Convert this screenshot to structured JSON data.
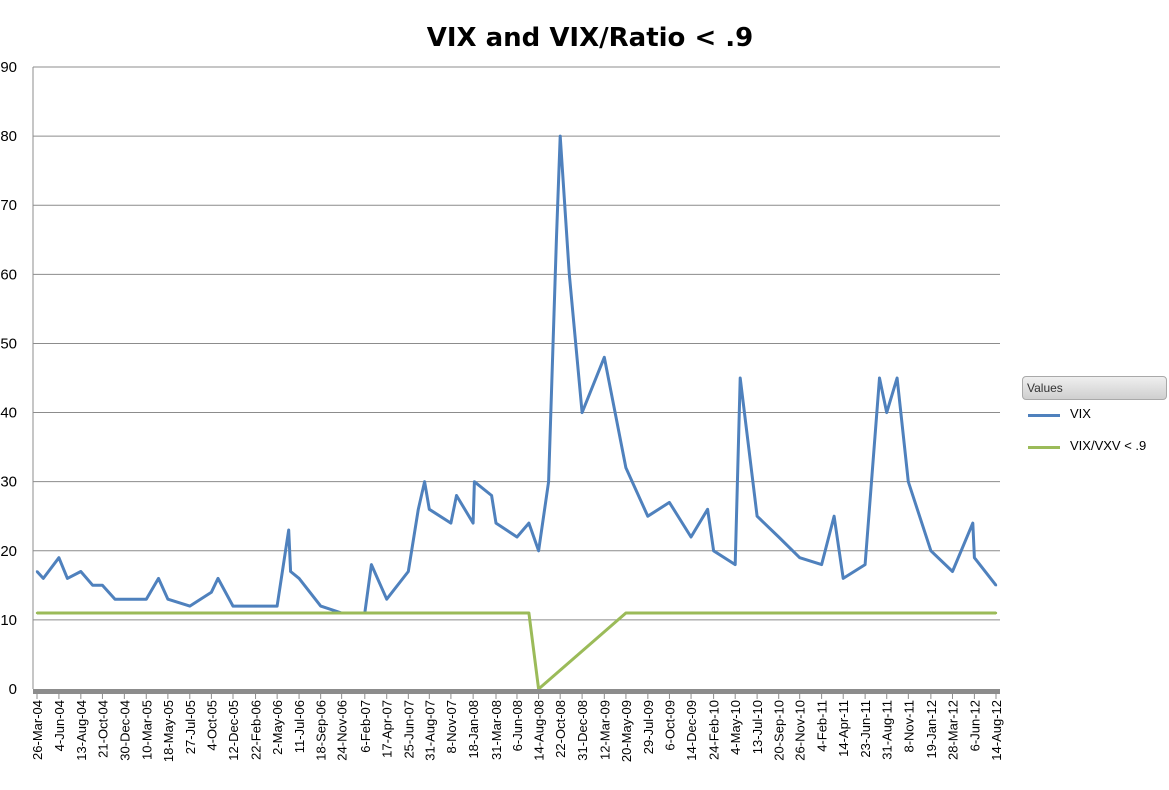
{
  "chart_data": {
    "type": "line",
    "title": "VIX and VIX/Ratio < .9",
    "ylim": [
      0,
      90
    ],
    "yticks": [
      "0",
      "10",
      "20",
      "30",
      "40",
      "50",
      "60",
      "70",
      "80",
      "90"
    ],
    "xticks": [
      "26-Mar-04",
      "4-Jun-04",
      "13-Aug-04",
      "21-Oct-04",
      "30-Dec-04",
      "10-Mar-05",
      "18-May-05",
      "27-Jul-05",
      "4-Oct-05",
      "12-Dec-05",
      "22-Feb-06",
      "2-May-06",
      "11-Jul-06",
      "18-Sep-06",
      "24-Nov-06",
      "6-Feb-07",
      "17-Apr-07",
      "25-Jun-07",
      "31-Aug-07",
      "8-Nov-07",
      "18-Jan-08",
      "31-Mar-08",
      "6-Jun-08",
      "14-Aug-08",
      "22-Oct-08",
      "31-Dec-08",
      "12-Mar-09",
      "20-May-09",
      "29-Jul-09",
      "6-Oct-09",
      "14-Dec-09",
      "24-Feb-10",
      "4-May-10",
      "13-Jul-10",
      "20-Sep-10",
      "26-Nov-10",
      "4-Feb-11",
      "14-Apr-11",
      "23-Jun-11",
      "31-Aug-11",
      "8-Nov-11",
      "19-Jan-12",
      "28-Mar-12",
      "6-Jun-12",
      "14-Aug-12"
    ],
    "grid": true,
    "legend_title": "Values",
    "legend_position": "right",
    "series": [
      {
        "name": "VIX",
        "color": "#4f81bd",
        "x": [
          "26-Mar-04",
          "15-Apr-04",
          "4-Jun-04",
          "1-Jul-04",
          "13-Aug-04",
          "20-Sep-04",
          "21-Oct-04",
          "30-Nov-04",
          "30-Dec-04",
          "10-Mar-05",
          "18-Apr-05",
          "18-May-05",
          "27-Jul-05",
          "4-Oct-05",
          "25-Oct-05",
          "12-Dec-05",
          "22-Feb-06",
          "2-May-06",
          "8-Jun-06",
          "14-Jun-06",
          "11-Jul-06",
          "18-Sep-06",
          "24-Nov-06",
          "6-Feb-07",
          "27-Feb-07",
          "17-Apr-07",
          "25-Jun-07",
          "27-Jul-07",
          "16-Aug-07",
          "31-Aug-07",
          "8-Nov-07",
          "26-Nov-07",
          "18-Jan-08",
          "22-Jan-08",
          "17-Mar-08",
          "31-Mar-08",
          "6-Jun-08",
          "14-Jul-08",
          "14-Aug-08",
          "15-Sep-08",
          "10-Oct-08",
          "22-Oct-08",
          "20-Nov-08",
          "31-Dec-08",
          "12-Mar-09",
          "20-May-09",
          "29-Jul-09",
          "6-Oct-09",
          "14-Dec-09",
          "5-Feb-10",
          "24-Feb-10",
          "4-May-10",
          "20-May-10",
          "13-Jul-10",
          "20-Sep-10",
          "26-Nov-10",
          "4-Feb-11",
          "16-Mar-11",
          "14-Apr-11",
          "23-Jun-11",
          "8-Aug-11",
          "31-Aug-11",
          "3-Oct-11",
          "8-Nov-11",
          "19-Jan-12",
          "28-Mar-12",
          "1-Jun-12",
          "6-Jun-12",
          "14-Aug-12"
        ],
        "values": [
          17,
          16,
          19,
          16,
          17,
          15,
          15,
          13,
          13,
          13,
          16,
          13,
          12,
          14,
          16,
          12,
          12,
          12,
          23,
          17,
          16,
          12,
          11,
          11,
          18,
          13,
          17,
          26,
          30,
          26,
          24,
          28,
          24,
          30,
          28,
          24,
          22,
          24,
          20,
          30,
          65,
          80,
          60,
          40,
          48,
          32,
          25,
          27,
          22,
          26,
          20,
          18,
          45,
          25,
          22,
          19,
          18,
          25,
          16,
          18,
          45,
          40,
          45,
          30,
          20,
          17,
          24,
          19,
          15
        ]
      },
      {
        "name": "VIX/VXV < .9",
        "color": "#9bbb59",
        "x": [
          "26-Mar-04",
          "29-Apr-04",
          "24-May-04",
          "4-Jun-04",
          "22-Jun-04",
          "13-Aug-04",
          "2-Sep-04",
          "30-Dec-04",
          "7-Feb-05",
          "10-Mar-05",
          "18-May-05",
          "27-Jul-05",
          "30-Aug-05",
          "4-Oct-05",
          "10-Nov-05",
          "12-Dec-05",
          "22-Feb-06",
          "2-May-06",
          "11-Jul-06",
          "18-Sep-06",
          "24-Nov-06",
          "6-Feb-07",
          "17-Apr-07",
          "25-Jun-07",
          "27-Jul-07",
          "31-Aug-07",
          "8-Nov-07",
          "31-Mar-08",
          "6-Jun-08",
          "14-Jul-08",
          "14-Aug-08",
          "20-May-09",
          "29-Jul-09",
          "6-Oct-09",
          "14-Dec-09",
          "24-Feb-10",
          "4-May-10",
          "13-Jul-10",
          "20-Sep-10",
          "26-Nov-10",
          "4-Feb-11",
          "14-Apr-11",
          "23-Jun-11",
          "31-Aug-11",
          "8-Nov-11",
          "19-Jan-12",
          "28-Mar-12",
          "6-Jun-12",
          "14-Aug-12"
        ],
        "values": [
          11,
          11,
          11,
          11,
          11,
          11,
          11,
          11,
          11,
          11,
          11,
          11,
          11,
          11,
          11,
          11,
          11,
          11,
          11,
          11,
          11,
          11,
          11,
          11,
          11,
          11,
          11,
          11,
          11,
          11,
          0,
          11,
          11,
          11,
          11,
          11,
          11,
          11,
          11,
          11,
          11,
          11,
          11,
          11,
          11,
          11,
          11,
          11,
          11
        ]
      }
    ]
  }
}
